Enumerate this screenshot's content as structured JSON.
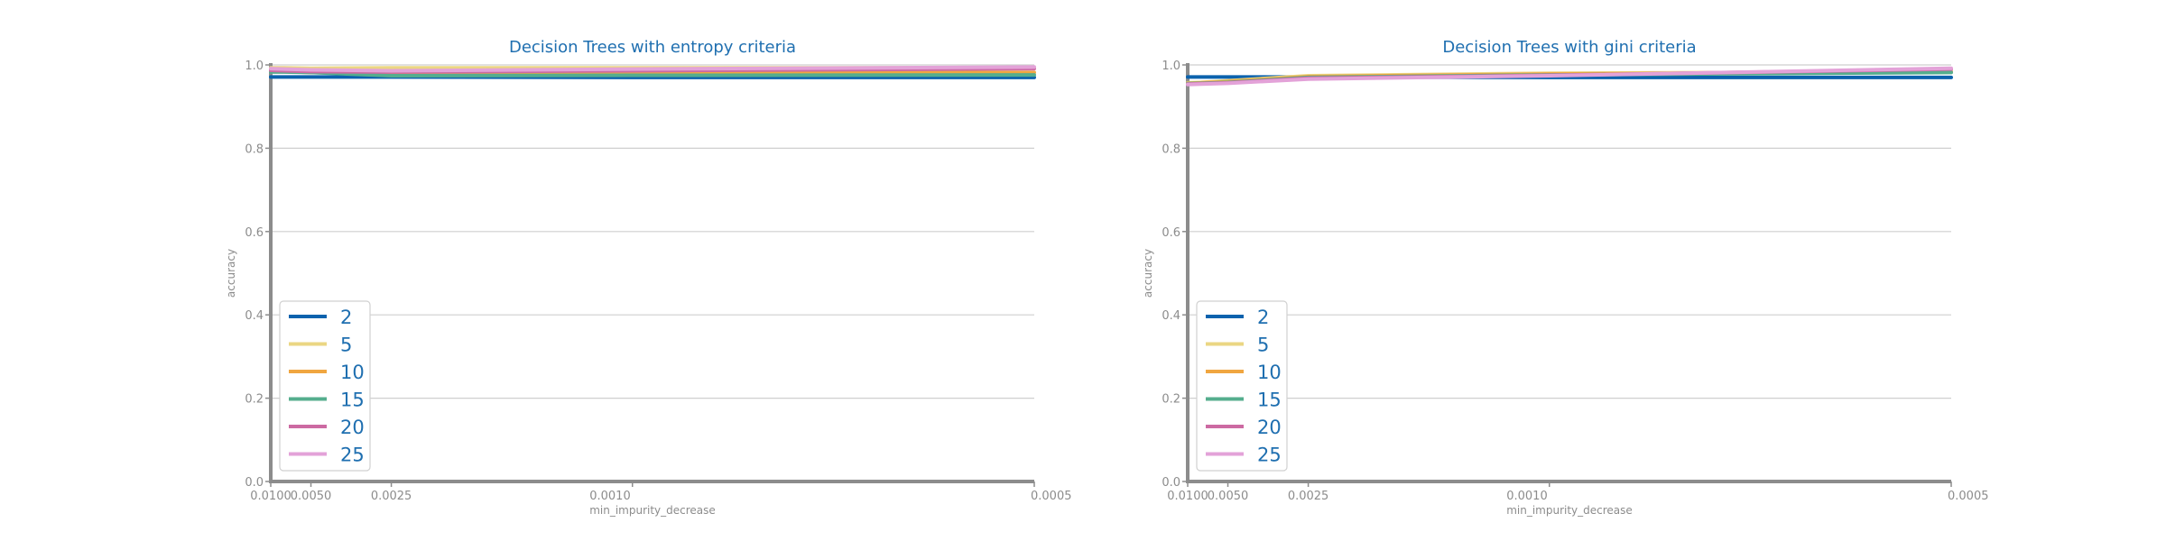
{
  "chart_data": [
    {
      "type": "line",
      "title": "Decision Trees with entropy criteria",
      "xlabel": "min_impurity_decrease",
      "ylabel": "accuracy",
      "x": [
        0.01,
        0.0075,
        0.005,
        0.0025,
        0.001,
        0.0005
      ],
      "x_tick_values": [
        0.01,
        0.005,
        0.0025,
        0.001,
        0.0005
      ],
      "x_tick_labels": [
        "0.0100",
        "0.0050",
        "0.0025",
        "0.0010",
        "0.0005"
      ],
      "x_scale": "reciprocal",
      "ylim": [
        0,
        1
      ],
      "y_ticks": [
        0,
        0.2,
        0.4,
        0.6,
        0.8,
        1.0
      ],
      "y_tick_labels": [
        "0.0",
        "0.2",
        "0.4",
        "0.6",
        "0.8",
        "1.0"
      ],
      "grid": "horizontal",
      "legend_position": "lower-left",
      "series": [
        {
          "name": "2",
          "color": "#0b62ad",
          "values": [
            0.971,
            0.971,
            0.971,
            0.971,
            0.97,
            0.97
          ]
        },
        {
          "name": "5",
          "color": "#ebd683",
          "values": [
            0.993,
            0.993,
            0.992,
            0.993,
            0.993,
            0.993
          ]
        },
        {
          "name": "10",
          "color": "#f0a640",
          "values": [
            0.985,
            0.984,
            0.982,
            0.978,
            0.98,
            0.982
          ]
        },
        {
          "name": "15",
          "color": "#55ae8e",
          "values": [
            0.983,
            0.983,
            0.982,
            0.974,
            0.975,
            0.976
          ]
        },
        {
          "name": "20",
          "color": "#cc6aa2",
          "values": [
            0.987,
            0.986,
            0.984,
            0.983,
            0.986,
            0.991
          ]
        },
        {
          "name": "25",
          "color": "#e3a2d8",
          "values": [
            0.991,
            0.99,
            0.988,
            0.986,
            0.99,
            0.995
          ]
        }
      ]
    },
    {
      "type": "line",
      "title": "Decision Trees with gini criteria",
      "xlabel": "min_impurity_decrease",
      "ylabel": "accuracy",
      "x": [
        0.01,
        0.0075,
        0.005,
        0.0025,
        0.001,
        0.0005
      ],
      "x_tick_values": [
        0.01,
        0.005,
        0.0025,
        0.001,
        0.0005
      ],
      "x_tick_labels": [
        "0.0100",
        "0.0050",
        "0.0025",
        "0.0010",
        "0.0005"
      ],
      "x_scale": "reciprocal",
      "ylim": [
        0,
        1
      ],
      "y_ticks": [
        0,
        0.2,
        0.4,
        0.6,
        0.8,
        1.0
      ],
      "y_tick_labels": [
        "0.0",
        "0.2",
        "0.4",
        "0.6",
        "0.8",
        "1.0"
      ],
      "grid": "horizontal",
      "legend_position": "lower-left",
      "series": [
        {
          "name": "2",
          "color": "#0b62ad",
          "values": [
            0.971,
            0.971,
            0.971,
            0.971,
            0.97,
            0.97
          ]
        },
        {
          "name": "5",
          "color": "#ebd683",
          "values": [
            0.957,
            0.958,
            0.962,
            0.974,
            0.98,
            0.984
          ]
        },
        {
          "name": "10",
          "color": "#f0a640",
          "values": [
            0.956,
            0.957,
            0.96,
            0.972,
            0.978,
            0.983
          ]
        },
        {
          "name": "15",
          "color": "#55ae8e",
          "values": [
            0.955,
            0.956,
            0.958,
            0.97,
            0.976,
            0.982
          ]
        },
        {
          "name": "20",
          "color": "#cc6aa2",
          "values": [
            0.954,
            0.955,
            0.957,
            0.968,
            0.975,
            0.99
          ]
        },
        {
          "name": "25",
          "color": "#e3a2d8",
          "values": [
            0.953,
            0.954,
            0.956,
            0.966,
            0.974,
            0.992
          ]
        }
      ]
    }
  ]
}
